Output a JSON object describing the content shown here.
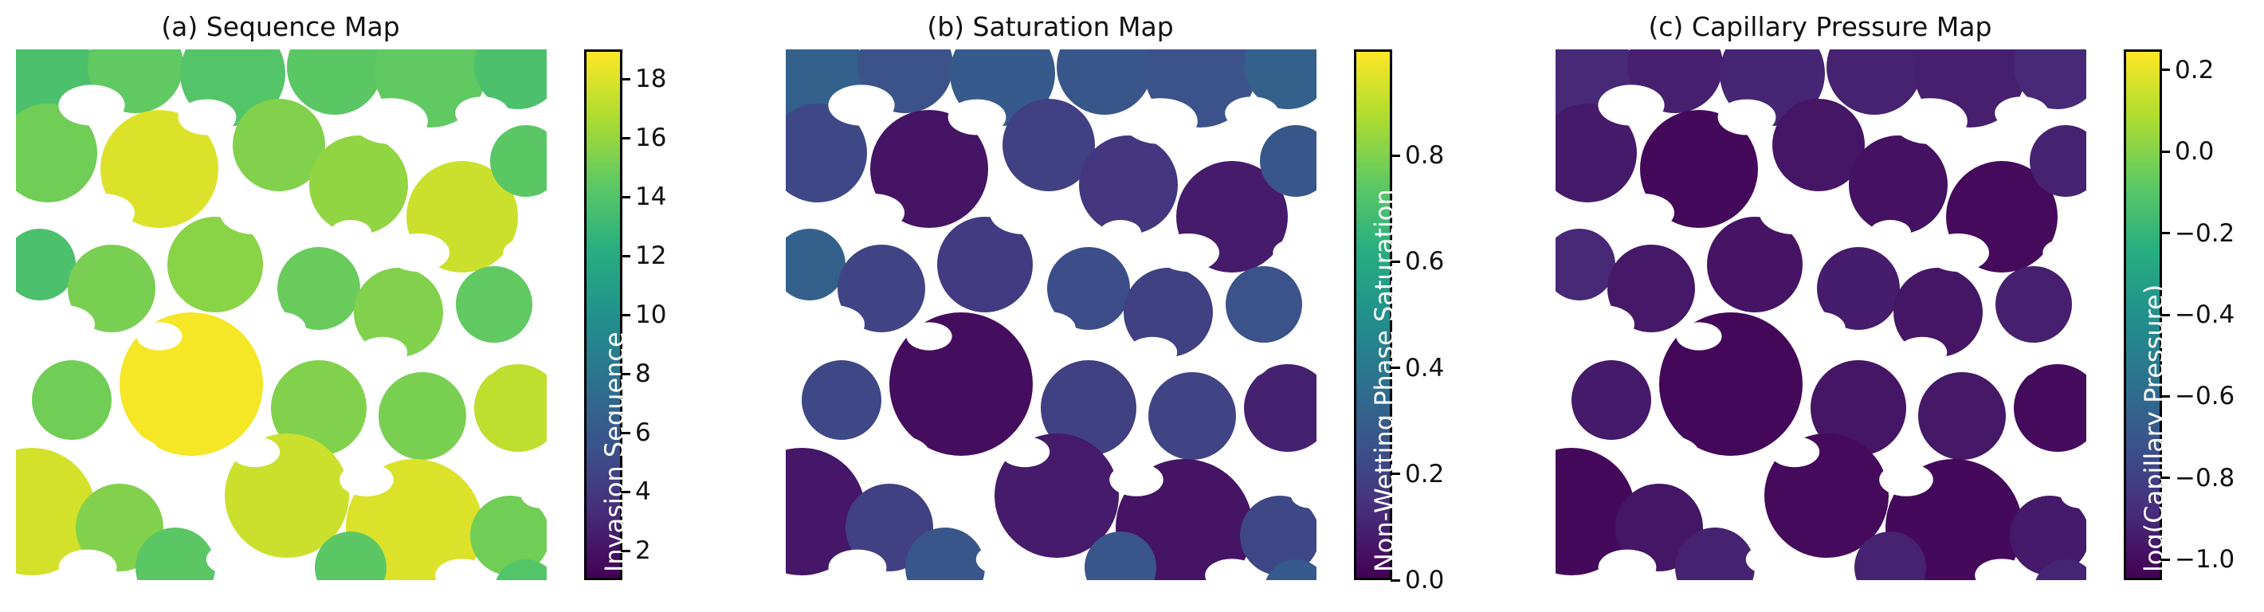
{
  "chart_data": [
    {
      "type": "heatmap",
      "title": "(a) Sequence Map",
      "colorbar_label": "Invasion Sequence",
      "colormap": [
        "#440154",
        "#472d7b",
        "#3b528b",
        "#2c728e",
        "#21918c",
        "#28ae80",
        "#5ec962",
        "#addc30",
        "#fde725"
      ],
      "range": [
        1,
        19
      ],
      "ticks": [
        "2",
        "4",
        "6",
        "8",
        "10",
        "12",
        "14",
        "16",
        "18"
      ],
      "tick_values": [
        2,
        4,
        6,
        8,
        10,
        12,
        14,
        16,
        18
      ]
    },
    {
      "type": "heatmap",
      "title": "(b) Saturation Map",
      "colorbar_label": "Non-Wetting Phase Saturation",
      "colormap": [
        "#440154",
        "#472d7b",
        "#3b528b",
        "#2c728e",
        "#21918c",
        "#28ae80",
        "#5ec962",
        "#addc30",
        "#fde725"
      ],
      "range": [
        0.0,
        1.0
      ],
      "ticks": [
        "0.0",
        "0.2",
        "0.4",
        "0.6",
        "0.8"
      ],
      "tick_values": [
        0.0,
        0.2,
        0.4,
        0.6,
        0.8
      ]
    },
    {
      "type": "heatmap",
      "title": "(c) Capillary Pressure Map",
      "colorbar_label": "log(Capillary Pressure)",
      "colormap": [
        "#440154",
        "#472d7b",
        "#3b528b",
        "#2c728e",
        "#21918c",
        "#28ae80",
        "#5ec962",
        "#addc30",
        "#fde725"
      ],
      "range": [
        -1.05,
        0.25
      ],
      "ticks": [
        "−1.0",
        "−0.8",
        "−0.6",
        "−0.4",
        "−0.2",
        "0.0",
        "0.2"
      ],
      "tick_values": [
        -1.0,
        -0.8,
        -0.6,
        -0.4,
        -0.2,
        0.0,
        0.2
      ]
    }
  ]
}
